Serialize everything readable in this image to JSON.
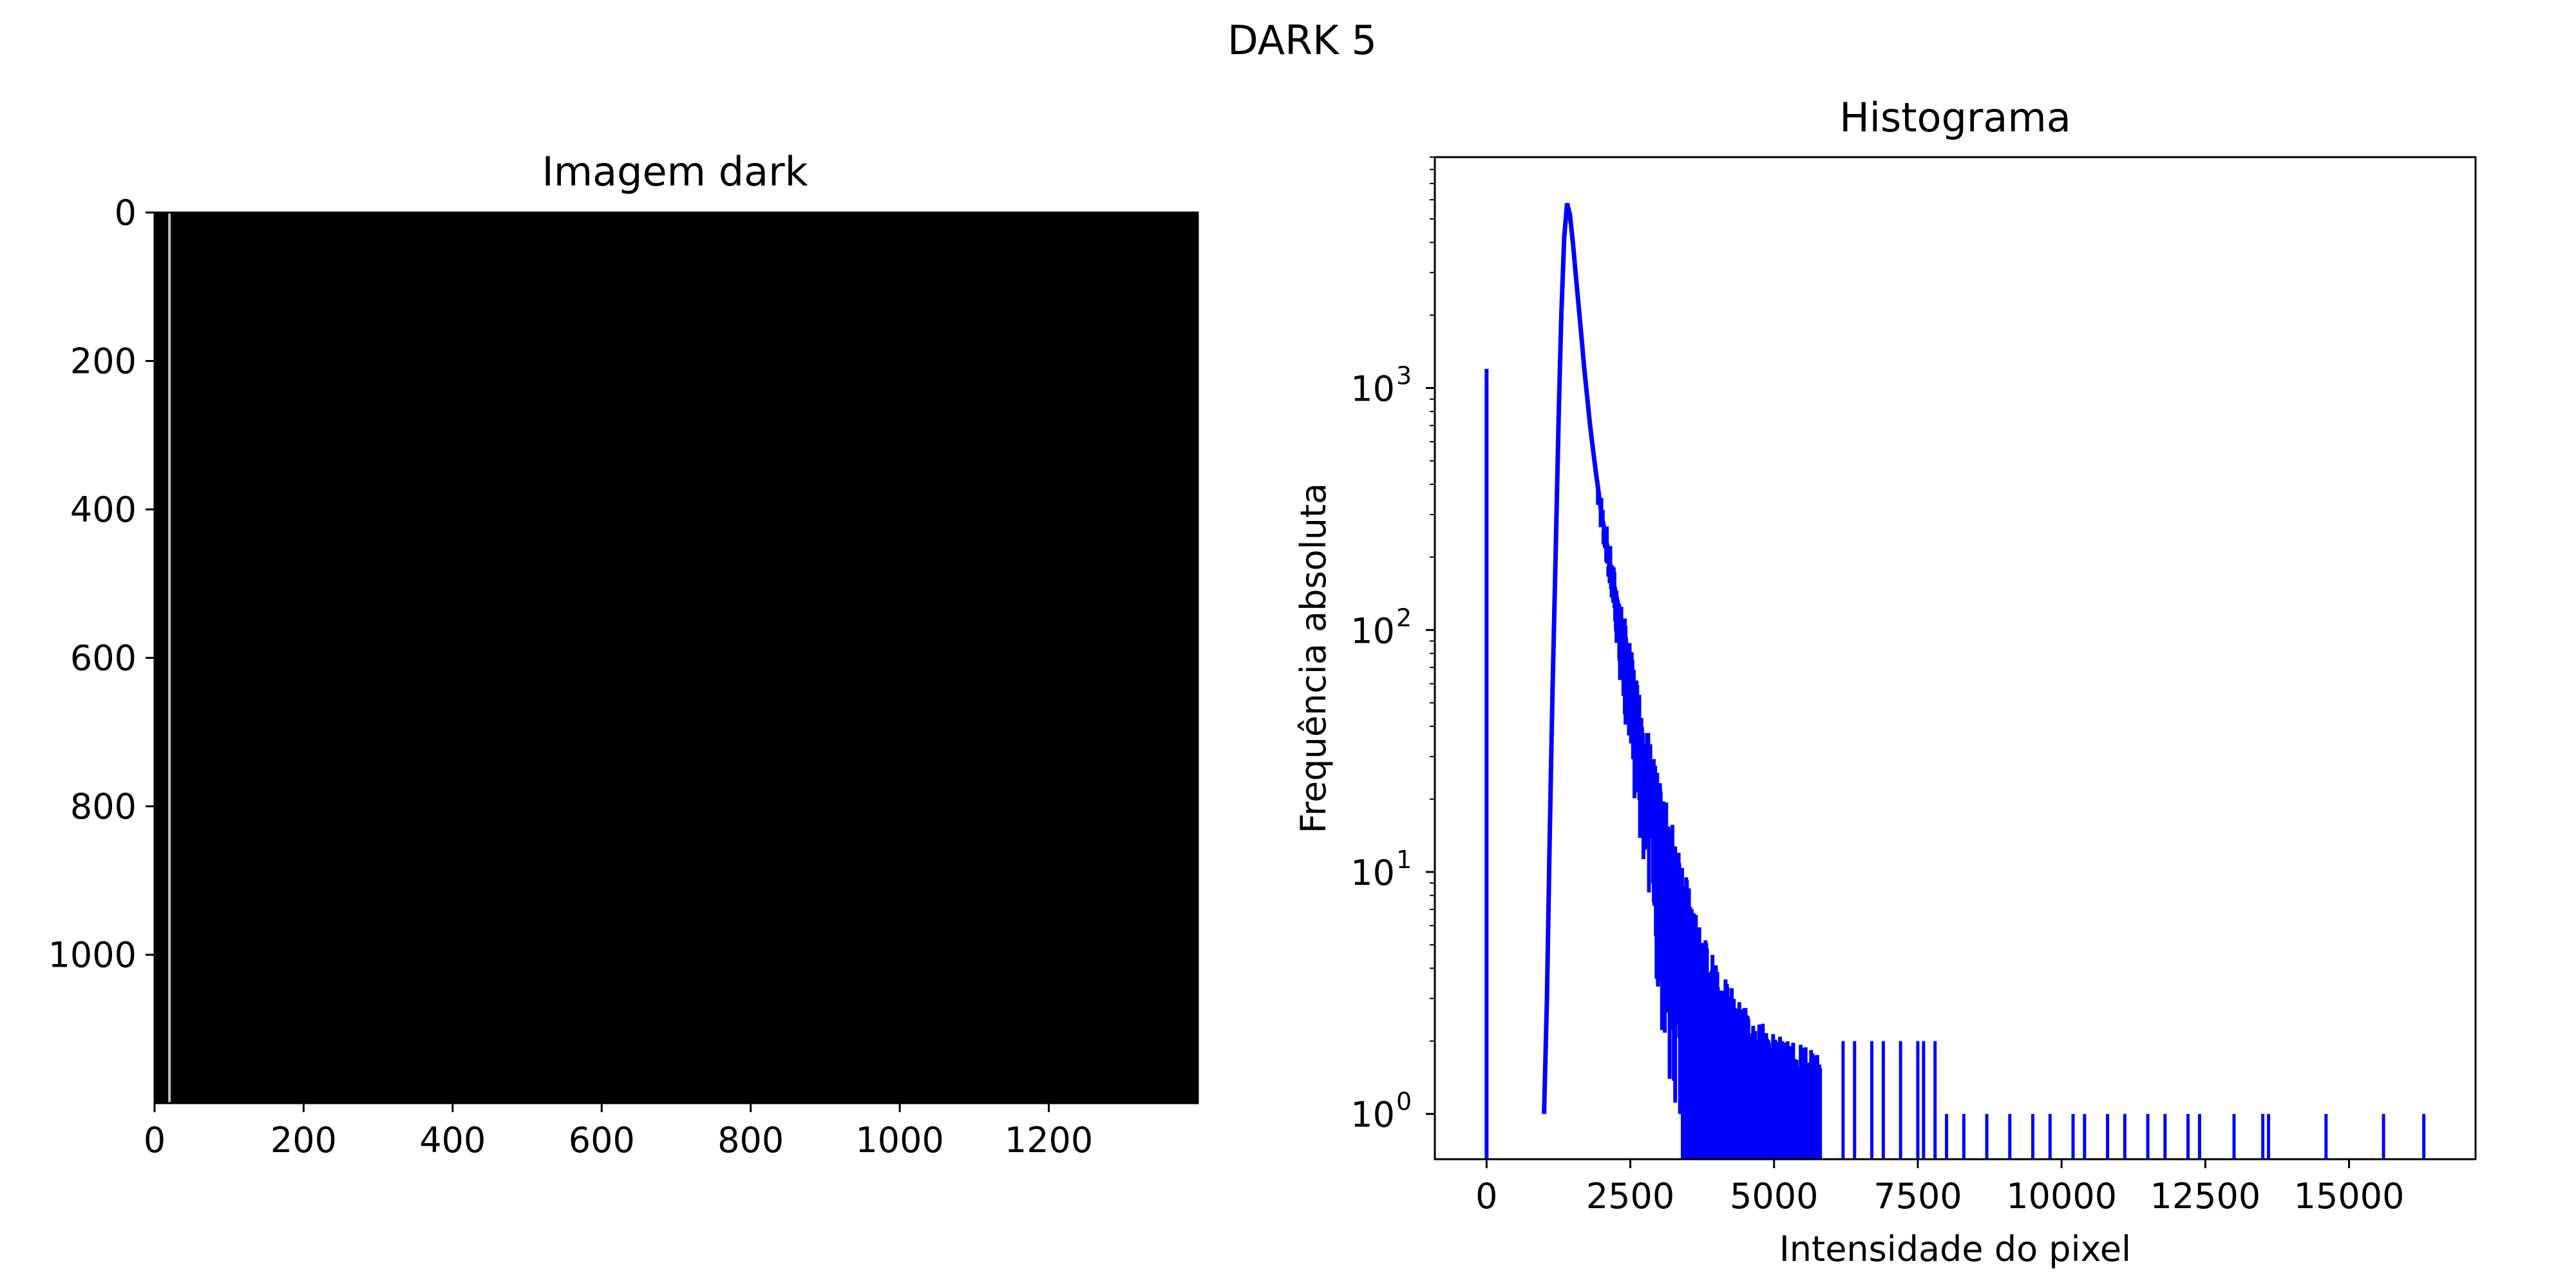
{
  "suptitle": "DARK 5",
  "chart_data": [
    {
      "type": "image",
      "title": "Imagem dark",
      "colormap": "gray",
      "background_color": "#000000",
      "bright_column_color": "#bdbdbd",
      "bright_column_x": 20,
      "xlim": [
        0,
        1400
      ],
      "ylim": [
        1200,
        0
      ],
      "xticks": [
        0,
        200,
        400,
        600,
        800,
        1000,
        1200
      ],
      "yticks": [
        0,
        200,
        400,
        600,
        800,
        1000
      ],
      "xlabel": "",
      "ylabel": ""
    },
    {
      "type": "line",
      "title": "Histograma",
      "xlabel": "Intensidade do pixel",
      "ylabel": "Frequência absoluta",
      "yscale": "log",
      "xlim": [
        -900,
        17200
      ],
      "ylim": [
        0.65,
        9000
      ],
      "xticks": [
        0,
        2500,
        5000,
        7500,
        10000,
        12500,
        15000
      ],
      "ytick_labels": [
        {
          "base": "10",
          "exp": "0"
        },
        {
          "base": "10",
          "exp": "1"
        },
        {
          "base": "10",
          "exp": "2"
        },
        {
          "base": "10",
          "exp": "3"
        }
      ],
      "ytick_values": [
        1,
        10,
        100,
        1000
      ],
      "series": [
        {
          "color": "#0000ff",
          "spike_at_zero": 1200,
          "peak": {
            "x": 1400,
            "y": 5800
          },
          "envelope": [
            [
              1000,
              1
            ],
            [
              1050,
              3
            ],
            [
              1100,
              15
            ],
            [
              1150,
              60
            ],
            [
              1200,
              200
            ],
            [
              1250,
              700
            ],
            [
              1300,
              2000
            ],
            [
              1350,
              4200
            ],
            [
              1400,
              5800
            ],
            [
              1450,
              5200
            ],
            [
              1500,
              4000
            ],
            [
              1600,
              2200
            ],
            [
              1700,
              1200
            ],
            [
              1800,
              700
            ],
            [
              1900,
              450
            ],
            [
              2000,
              300
            ],
            [
              2100,
              220
            ],
            [
              2200,
              160
            ],
            [
              2400,
              95
            ],
            [
              2600,
              55
            ],
            [
              2800,
              33
            ],
            [
              3000,
              20
            ],
            [
              3300,
              12
            ],
            [
              3600,
              6
            ],
            [
              4000,
              3.5
            ],
            [
              4500,
              2.3
            ],
            [
              5000,
              1.8
            ],
            [
              5800,
              1.5
            ]
          ],
          "isolated_counts": [
            [
              6200,
              2
            ],
            [
              6400,
              2
            ],
            [
              6700,
              2
            ],
            [
              6900,
              2
            ],
            [
              7200,
              2
            ],
            [
              7500,
              2
            ],
            [
              7600,
              2
            ],
            [
              7800,
              2
            ],
            [
              8000,
              1
            ],
            [
              8300,
              1
            ],
            [
              8700,
              1
            ],
            [
              9100,
              1
            ],
            [
              9500,
              1
            ],
            [
              9800,
              1
            ],
            [
              10200,
              1
            ],
            [
              10400,
              1
            ],
            [
              10800,
              1
            ],
            [
              11100,
              1
            ],
            [
              11500,
              1
            ],
            [
              11800,
              1
            ],
            [
              12200,
              1
            ],
            [
              12400,
              1
            ],
            [
              13000,
              1
            ],
            [
              13500,
              1
            ],
            [
              13600,
              1
            ],
            [
              14600,
              1
            ],
            [
              15600,
              1
            ],
            [
              16300,
              1
            ]
          ]
        }
      ]
    }
  ]
}
